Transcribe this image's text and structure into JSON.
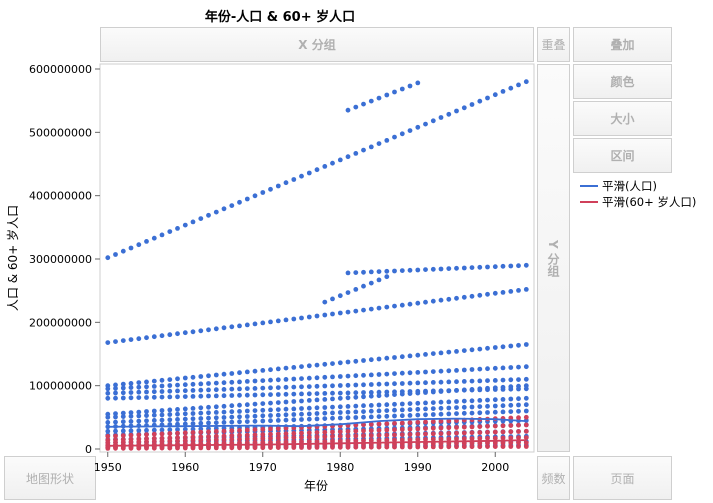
{
  "title": "年份-人口 & 60+ 岁人口",
  "zones": {
    "x_group": "X 分组",
    "y_group": "Y 分组",
    "overlay": "重叠",
    "wrap": "叠加",
    "color": "颜色",
    "size": "大小",
    "interval": "区间",
    "map_shape": "地图形状",
    "freq": "频数",
    "page": "页面"
  },
  "legend": [
    {
      "label": "平滑(人口)",
      "color": "#3b6fd4"
    },
    {
      "label": "平滑(60+ 岁人口)",
      "color": "#d0405a"
    }
  ],
  "chart_data": {
    "type": "scatter",
    "title": "年份-人口 & 60+ 岁人口",
    "xlabel": "年份",
    "ylabel": "人口 & 60+ 岁人口",
    "xlim": [
      1949,
      2005
    ],
    "ylim": [
      0,
      600000000
    ],
    "x_ticks": [
      1950,
      1960,
      1970,
      1980,
      1990,
      2000
    ],
    "y_ticks": [
      0,
      100000000,
      200000000,
      300000000,
      400000000,
      500000000,
      600000000
    ],
    "y_tick_labels": [
      "0",
      "100000000",
      "200000000",
      "300000000",
      "400000000",
      "500000000",
      "600000000"
    ],
    "series": [
      {
        "name": "人口",
        "color": "#3b6fd4",
        "start_year": 1950,
        "end_year": 2004,
        "tracks": [
          {
            "start": [
              1950,
              302000000
            ],
            "end": [
              2004,
              580000000
            ]
          },
          {
            "start": [
              1981,
              535000000
            ],
            "end": [
              1990,
              578000000
            ]
          },
          {
            "start": [
              1950,
              168000000
            ],
            "end": [
              2004,
              252000000
            ]
          },
          {
            "start": [
              1981,
              278000000
            ],
            "end": [
              2004,
              290000000
            ]
          },
          {
            "start": [
              1978,
              232000000
            ],
            "end": [
              1986,
              272000000
            ]
          },
          {
            "start": [
              1950,
              100000000
            ],
            "end": [
              2004,
              165000000
            ]
          },
          {
            "start": [
              1950,
              95000000
            ],
            "end": [
              2004,
              130000000
            ]
          },
          {
            "start": [
              1950,
              88000000
            ],
            "end": [
              2004,
              110000000
            ]
          },
          {
            "start": [
              1950,
              80000000
            ],
            "end": [
              2004,
              95000000
            ]
          },
          {
            "start": [
              1950,
              55000000
            ],
            "end": [
              2004,
              100000000
            ]
          },
          {
            "start": [
              1950,
              50000000
            ],
            "end": [
              2004,
              80000000
            ]
          },
          {
            "start": [
              1950,
              42000000
            ],
            "end": [
              2004,
              70000000
            ]
          },
          {
            "start": [
              1950,
              35000000
            ],
            "end": [
              2004,
              60000000
            ]
          },
          {
            "start": [
              1950,
              28000000
            ],
            "end": [
              2004,
              45000000
            ]
          },
          {
            "start": [
              1950,
              22000000
            ],
            "end": [
              2004,
              38000000
            ]
          },
          {
            "start": [
              1950,
              15000000
            ],
            "end": [
              2004,
              28000000
            ]
          },
          {
            "start": [
              1950,
              10000000
            ],
            "end": [
              2004,
              20000000
            ]
          },
          {
            "start": [
              1950,
              6000000
            ],
            "end": [
              2004,
              12000000
            ]
          },
          {
            "start": [
              1950,
              3000000
            ],
            "end": [
              2004,
              6000000
            ]
          }
        ]
      },
      {
        "name": "60+ 岁人口",
        "color": "#d0405a",
        "start_year": 1950,
        "end_year": 2004,
        "tracks": [
          {
            "start": [
              1950,
              20000000
            ],
            "end": [
              2004,
              50000000
            ]
          },
          {
            "start": [
              1950,
              14000000
            ],
            "end": [
              2004,
              38000000
            ]
          },
          {
            "start": [
              1950,
              10000000
            ],
            "end": [
              2004,
              28000000
            ]
          },
          {
            "start": [
              1950,
              6000000
            ],
            "end": [
              2004,
              18000000
            ]
          },
          {
            "start": [
              1950,
              3000000
            ],
            "end": [
              2004,
              10000000
            ]
          },
          {
            "start": [
              1950,
              1000000
            ],
            "end": [
              2004,
              4000000
            ]
          }
        ]
      }
    ],
    "smooth": [
      {
        "name": "平滑(人口)",
        "color": "#3b6fd4",
        "points": [
          [
            1950,
            35000000
          ],
          [
            1960,
            36000000
          ],
          [
            1970,
            37000000
          ],
          [
            1975,
            36000000
          ],
          [
            1980,
            39000000
          ],
          [
            1985,
            44000000
          ],
          [
            1990,
            47000000
          ],
          [
            1995,
            48000000
          ],
          [
            2000,
            47000000
          ],
          [
            2004,
            44000000
          ]
        ]
      },
      {
        "name": "平滑(60+ 岁人口)",
        "color": "#d0405a",
        "points": [
          [
            1950,
            5000000
          ],
          [
            1960,
            6000000
          ],
          [
            1970,
            7000000
          ],
          [
            1980,
            9000000
          ],
          [
            1990,
            11000000
          ],
          [
            2000,
            13000000
          ],
          [
            2004,
            14000000
          ]
        ]
      }
    ]
  }
}
